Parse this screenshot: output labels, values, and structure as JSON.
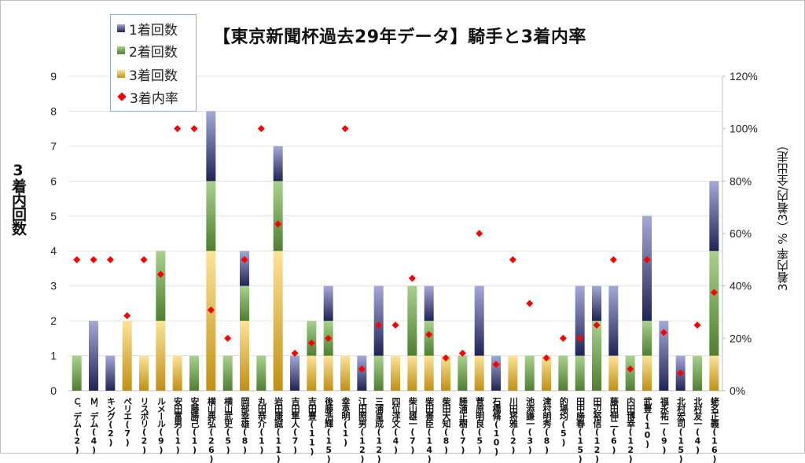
{
  "chart_data": {
    "type": "bar",
    "stacked": true,
    "title": "【東京新聞杯過去29年データ】騎手と3着内率",
    "ylabel": "3着内回数",
    "y2label": "3着内率 %（3着内/全出走）",
    "ylim": [
      0,
      9
    ],
    "y2lim": [
      0,
      120
    ],
    "yticks": [
      "0",
      "1",
      "2",
      "3",
      "4",
      "5",
      "6",
      "7",
      "8",
      "9"
    ],
    "y2ticks": [
      "0%",
      "20%",
      "40%",
      "60%",
      "80%",
      "100%",
      "120%"
    ],
    "grid": true,
    "legend_position": "top-left",
    "legend": [
      "1着回数",
      "2着回数",
      "3着回数",
      "3着内率"
    ],
    "categories": [
      "Ｃ．デム(2)",
      "Ｍ．デム(4)",
      "キング(2)",
      "ペリエ(7)",
      "リスポリ(2)",
      "ルメール(9)",
      "安田富男(1)",
      "安藤勝己(1)",
      "横山典弘(26)",
      "横山武史(5)",
      "岡部幸雄(8)",
      "丸田恭介(1)",
      "岩田康誠(11)",
      "吉田隼人(7)",
      "吉田豊(11)",
      "後藤浩輝(15)",
      "幸英明(1)",
      "江田照男(12)",
      "三浦皇成(12)",
      "四位洋文(4)",
      "柴山雄一(7)",
      "柴田善臣(14)",
      "柴田大知(8)",
      "勝浦正樹(7)",
      "菅原明良(5)",
      "石橋脩(10)",
      "川田将雅(2)",
      "池添謙一(3)",
      "津村明秀(8)",
      "的場均(5)",
      "田中勝春(15)",
      "田辺裕信(12)",
      "藤田伸二(6)",
      "内田博幸(12)",
      "武豊(10)",
      "福永祐一(9)",
      "北村宏司(15)",
      "北村友一(4)",
      "蛯名正義(16)"
    ],
    "series": [
      {
        "name": "3着回数",
        "color_dark": "#c18f14",
        "color_light": "#fde399",
        "values": [
          0,
          0,
          0,
          2,
          1,
          2,
          1,
          0,
          4,
          0,
          2,
          0,
          4,
          0,
          1,
          1,
          1,
          0,
          0,
          1,
          1,
          1,
          1,
          0,
          1,
          0,
          1,
          0,
          1,
          0,
          0,
          0,
          1,
          0,
          1,
          0,
          0,
          0,
          1
        ]
      },
      {
        "name": "2着回数",
        "color_dark": "#4e7f31",
        "color_light": "#a9d18e",
        "values": [
          1,
          0,
          0,
          0,
          0,
          2,
          0,
          1,
          2,
          1,
          1,
          1,
          2,
          0,
          1,
          1,
          0,
          0,
          1,
          0,
          2,
          1,
          0,
          1,
          0,
          0,
          0,
          1,
          0,
          1,
          1,
          2,
          0,
          1,
          1,
          0,
          0,
          1,
          3
        ]
      },
      {
        "name": "1着回数",
        "color_dark": "#1f2456",
        "color_light": "#a4a9d8",
        "values": [
          0,
          2,
          1,
          0,
          0,
          0,
          0,
          0,
          2,
          0,
          1,
          0,
          1,
          1,
          0,
          1,
          0,
          1,
          2,
          0,
          0,
          1,
          0,
          0,
          2,
          1,
          0,
          0,
          0,
          0,
          2,
          1,
          2,
          0,
          3,
          2,
          1,
          0,
          2
        ]
      },
      {
        "name": "3着内率",
        "type": "scatter",
        "axis": "y2",
        "color": "#ff0000",
        "values": [
          50,
          50,
          50,
          28.6,
          50,
          44.4,
          100,
          100,
          30.8,
          20,
          50,
          100,
          63.6,
          14.3,
          18.2,
          20,
          100,
          8.3,
          25,
          25,
          42.9,
          21.4,
          12.5,
          14.3,
          60,
          10,
          50,
          33.3,
          12.5,
          20,
          20,
          25,
          50,
          8.3,
          50,
          22.2,
          6.7,
          25,
          37.5
        ]
      }
    ]
  }
}
